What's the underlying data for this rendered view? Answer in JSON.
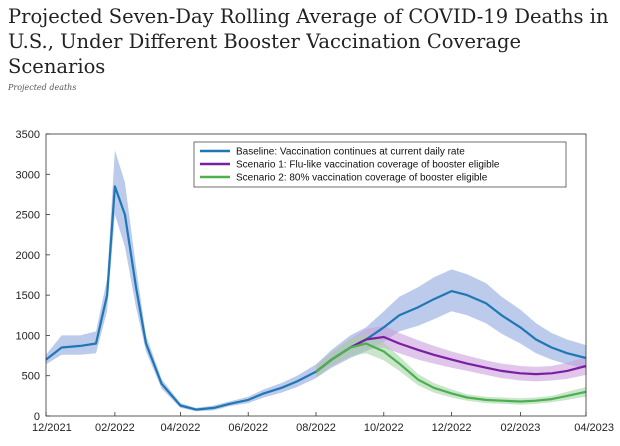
{
  "title": "Projected Seven-Day Rolling Average of COVID-19 Deaths in U.S., Under Different Booster Vaccination Coverage Scenarios",
  "subtitle": "Projected deaths",
  "chart_data": {
    "type": "line",
    "xlim": [
      "2021-12-01",
      "2023-04-01"
    ],
    "ylim": [
      0,
      3500
    ],
    "x_ticks": [
      "12/2021",
      "02/2022",
      "04/2022",
      "06/2022",
      "08/2022",
      "10/2022",
      "12/2022",
      "02/2023",
      "04/2023"
    ],
    "y_ticks": [
      0,
      500,
      1000,
      1500,
      2000,
      2500,
      3000,
      3500
    ],
    "grid": false,
    "legend_position": "top-right",
    "series": [
      {
        "name": "Baseline: Vaccination continues at current daily rate",
        "color": "#1f77b4",
        "band_color": "#8fa8e0",
        "x": [
          "2021-12-01",
          "2021-12-15",
          "2022-01-01",
          "2022-01-15",
          "2022-01-25",
          "2022-02-01",
          "2022-02-10",
          "2022-02-20",
          "2022-03-01",
          "2022-03-15",
          "2022-04-01",
          "2022-04-15",
          "2022-05-01",
          "2022-05-15",
          "2022-06-01",
          "2022-06-15",
          "2022-07-01",
          "2022-07-15",
          "2022-08-01",
          "2022-08-15",
          "2022-09-01",
          "2022-09-15",
          "2022-10-01",
          "2022-10-15",
          "2022-11-01",
          "2022-11-15",
          "2022-12-01",
          "2022-12-15",
          "2023-01-01",
          "2023-01-15",
          "2023-02-01",
          "2023-02-15",
          "2023-03-01",
          "2023-03-15",
          "2023-04-01"
        ],
        "values": [
          700,
          850,
          870,
          900,
          1500,
          2850,
          2500,
          1600,
          900,
          400,
          130,
          80,
          100,
          150,
          200,
          280,
          350,
          430,
          550,
          700,
          850,
          950,
          1100,
          1250,
          1350,
          1450,
          1550,
          1500,
          1400,
          1250,
          1100,
          950,
          850,
          780,
          720
        ],
        "band": [
          [
            640,
            760
          ],
          [
            760,
            1000
          ],
          [
            760,
            1000
          ],
          [
            780,
            1050
          ],
          [
            1300,
            1700
          ],
          [
            2500,
            3300
          ],
          [
            2100,
            2900
          ],
          [
            1350,
            1850
          ],
          [
            800,
            1000
          ],
          [
            340,
            460
          ],
          [
            100,
            160
          ],
          [
            60,
            100
          ],
          [
            70,
            130
          ],
          [
            120,
            180
          ],
          [
            160,
            240
          ],
          [
            230,
            330
          ],
          [
            290,
            410
          ],
          [
            360,
            500
          ],
          [
            470,
            640
          ],
          [
            600,
            820
          ],
          [
            720,
            1000
          ],
          [
            800,
            1100
          ],
          [
            920,
            1300
          ],
          [
            1050,
            1480
          ],
          [
            1120,
            1600
          ],
          [
            1200,
            1720
          ],
          [
            1300,
            1820
          ],
          [
            1250,
            1760
          ],
          [
            1150,
            1650
          ],
          [
            1020,
            1480
          ],
          [
            900,
            1320
          ],
          [
            780,
            1150
          ],
          [
            700,
            1030
          ],
          [
            640,
            950
          ],
          [
            590,
            880
          ]
        ]
      },
      {
        "name": "Scenario 1: Flu-like vaccination coverage of booster eligible",
        "color": "#7b1fa2",
        "band_color": "#c9a0dc",
        "x": [
          "2022-08-01",
          "2022-08-15",
          "2022-09-01",
          "2022-09-15",
          "2022-10-01",
          "2022-10-15",
          "2022-11-01",
          "2022-11-15",
          "2022-12-01",
          "2022-12-15",
          "2023-01-01",
          "2023-01-15",
          "2023-02-01",
          "2023-02-15",
          "2023-03-01",
          "2023-03-15",
          "2023-04-01"
        ],
        "values": [
          550,
          700,
          850,
          950,
          980,
          900,
          820,
          760,
          700,
          650,
          600,
          560,
          530,
          520,
          530,
          560,
          620
        ],
        "band": [
          [
            480,
            620
          ],
          [
            620,
            790
          ],
          [
            740,
            960
          ],
          [
            820,
            1080
          ],
          [
            850,
            1120
          ],
          [
            780,
            1030
          ],
          [
            700,
            940
          ],
          [
            650,
            870
          ],
          [
            600,
            800
          ],
          [
            560,
            750
          ],
          [
            510,
            690
          ],
          [
            470,
            650
          ],
          [
            440,
            620
          ],
          [
            430,
            610
          ],
          [
            440,
            620
          ],
          [
            460,
            660
          ],
          [
            510,
            730
          ]
        ]
      },
      {
        "name": "Scenario 2: 80% vaccination coverage of booster eligible",
        "color": "#4caf50",
        "band_color": "#a5d6a7",
        "x": [
          "2022-08-01",
          "2022-08-15",
          "2022-09-01",
          "2022-09-15",
          "2022-10-01",
          "2022-10-15",
          "2022-11-01",
          "2022-11-15",
          "2022-12-01",
          "2022-12-15",
          "2023-01-01",
          "2023-01-15",
          "2023-02-01",
          "2023-02-15",
          "2023-03-01",
          "2023-03-15",
          "2023-04-01"
        ],
        "values": [
          550,
          700,
          850,
          900,
          800,
          650,
          450,
          350,
          280,
          230,
          200,
          190,
          180,
          190,
          210,
          250,
          300
        ],
        "band": [
          [
            480,
            620
          ],
          [
            620,
            790
          ],
          [
            740,
            960
          ],
          [
            780,
            1020
          ],
          [
            690,
            910
          ],
          [
            560,
            740
          ],
          [
            380,
            520
          ],
          [
            290,
            410
          ],
          [
            230,
            330
          ],
          [
            190,
            270
          ],
          [
            160,
            240
          ],
          [
            150,
            230
          ],
          [
            140,
            220
          ],
          [
            150,
            230
          ],
          [
            170,
            250
          ],
          [
            200,
            300
          ],
          [
            240,
            360
          ]
        ]
      }
    ]
  }
}
